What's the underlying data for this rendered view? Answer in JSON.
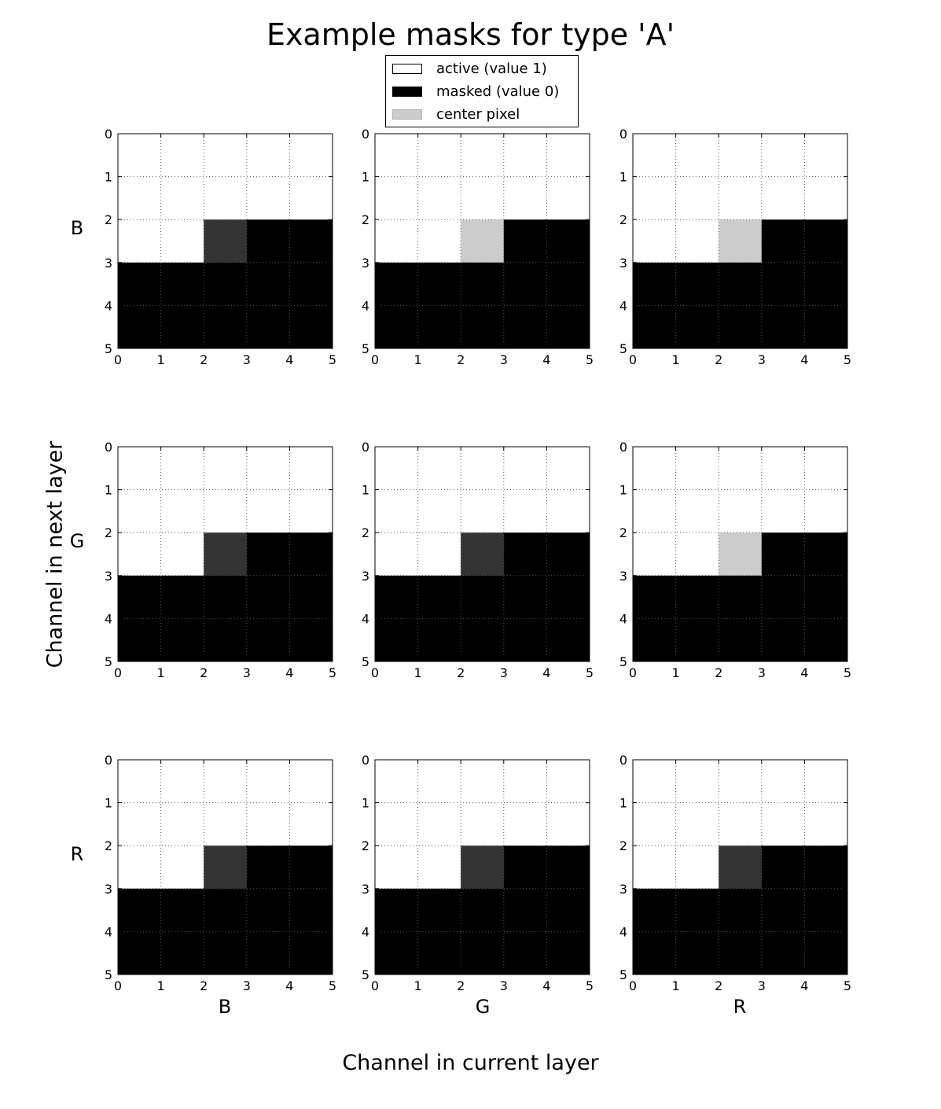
{
  "chart_data": {
    "type": "heatmap",
    "title": "Example masks for type 'A'",
    "xlabel": "Channel in current layer",
    "ylabel": "Channel in next layer",
    "column_labels": [
      "B",
      "G",
      "R"
    ],
    "row_labels": [
      "B",
      "G",
      "R"
    ],
    "legend": {
      "placement": "top-center",
      "entries": [
        {
          "label": "active (value 1)",
          "color": "#ffffff"
        },
        {
          "label": "masked (value 0)",
          "color": "#000000"
        },
        {
          "label": "center pixel",
          "color": "#cccccc"
        }
      ]
    },
    "grid": true,
    "xlim": [
      0,
      5
    ],
    "ylim": [
      5,
      0
    ],
    "xticks": [
      0,
      1,
      2,
      3,
      4,
      5
    ],
    "yticks": [
      0,
      1,
      2,
      3,
      4,
      5
    ],
    "colors": {
      "active": "#ffffff",
      "masked": "#000000",
      "center_active": "#cccccc",
      "center_masked": "#333333"
    },
    "kernel_size": 5,
    "center": [
      2,
      2
    ],
    "center_active": [
      [
        false,
        true,
        true
      ],
      [
        false,
        false,
        true
      ],
      [
        false,
        false,
        false
      ]
    ],
    "masks": [
      [
        [
          [
            1,
            1,
            1,
            1,
            1
          ],
          [
            1,
            1,
            1,
            1,
            1
          ],
          [
            1,
            1,
            0,
            0,
            0
          ],
          [
            0,
            0,
            0,
            0,
            0
          ],
          [
            0,
            0,
            0,
            0,
            0
          ]
        ],
        [
          [
            1,
            1,
            1,
            1,
            1
          ],
          [
            1,
            1,
            1,
            1,
            1
          ],
          [
            1,
            1,
            1,
            0,
            0
          ],
          [
            0,
            0,
            0,
            0,
            0
          ],
          [
            0,
            0,
            0,
            0,
            0
          ]
        ],
        [
          [
            1,
            1,
            1,
            1,
            1
          ],
          [
            1,
            1,
            1,
            1,
            1
          ],
          [
            1,
            1,
            1,
            0,
            0
          ],
          [
            0,
            0,
            0,
            0,
            0
          ],
          [
            0,
            0,
            0,
            0,
            0
          ]
        ]
      ],
      [
        [
          [
            1,
            1,
            1,
            1,
            1
          ],
          [
            1,
            1,
            1,
            1,
            1
          ],
          [
            1,
            1,
            0,
            0,
            0
          ],
          [
            0,
            0,
            0,
            0,
            0
          ],
          [
            0,
            0,
            0,
            0,
            0
          ]
        ],
        [
          [
            1,
            1,
            1,
            1,
            1
          ],
          [
            1,
            1,
            1,
            1,
            1
          ],
          [
            1,
            1,
            0,
            0,
            0
          ],
          [
            0,
            0,
            0,
            0,
            0
          ],
          [
            0,
            0,
            0,
            0,
            0
          ]
        ],
        [
          [
            1,
            1,
            1,
            1,
            1
          ],
          [
            1,
            1,
            1,
            1,
            1
          ],
          [
            1,
            1,
            1,
            0,
            0
          ],
          [
            0,
            0,
            0,
            0,
            0
          ],
          [
            0,
            0,
            0,
            0,
            0
          ]
        ]
      ],
      [
        [
          [
            1,
            1,
            1,
            1,
            1
          ],
          [
            1,
            1,
            1,
            1,
            1
          ],
          [
            1,
            1,
            0,
            0,
            0
          ],
          [
            0,
            0,
            0,
            0,
            0
          ],
          [
            0,
            0,
            0,
            0,
            0
          ]
        ],
        [
          [
            1,
            1,
            1,
            1,
            1
          ],
          [
            1,
            1,
            1,
            1,
            1
          ],
          [
            1,
            1,
            0,
            0,
            0
          ],
          [
            0,
            0,
            0,
            0,
            0
          ],
          [
            0,
            0,
            0,
            0,
            0
          ]
        ],
        [
          [
            1,
            1,
            1,
            1,
            1
          ],
          [
            1,
            1,
            1,
            1,
            1
          ],
          [
            1,
            1,
            0,
            0,
            0
          ],
          [
            0,
            0,
            0,
            0,
            0
          ],
          [
            0,
            0,
            0,
            0,
            0
          ]
        ]
      ]
    ]
  }
}
